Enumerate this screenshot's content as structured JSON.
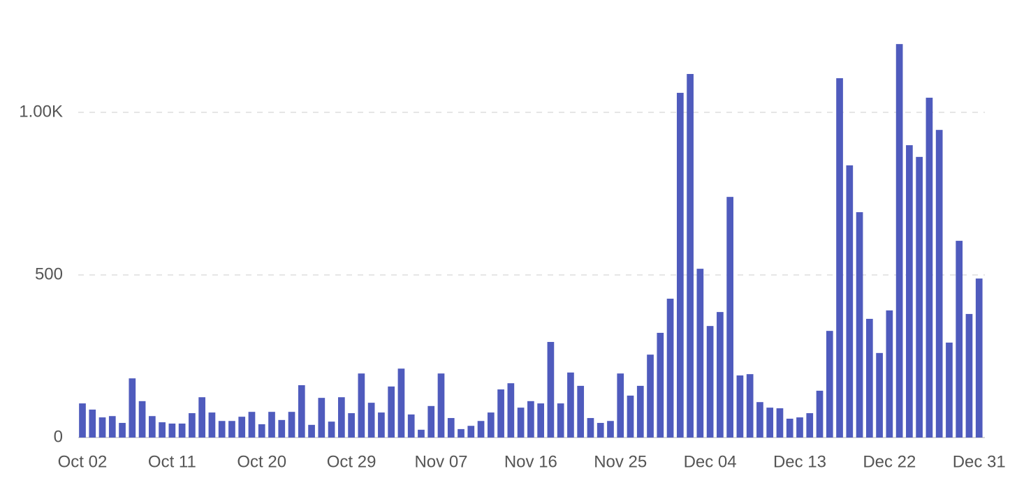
{
  "chart_data": {
    "type": "bar",
    "categories": [
      "Oct 02",
      null,
      null,
      null,
      null,
      null,
      null,
      null,
      null,
      "Oct 11",
      null,
      null,
      null,
      null,
      null,
      null,
      null,
      null,
      "Oct 20",
      null,
      null,
      null,
      null,
      null,
      null,
      null,
      null,
      "Oct 29",
      null,
      null,
      null,
      null,
      null,
      null,
      null,
      null,
      "Nov 07",
      null,
      null,
      null,
      null,
      null,
      null,
      null,
      null,
      "Nov 16",
      null,
      null,
      null,
      null,
      null,
      null,
      null,
      null,
      "Nov 25",
      null,
      null,
      null,
      null,
      null,
      null,
      null,
      null,
      "Dec 04",
      null,
      null,
      null,
      null,
      null,
      null,
      null,
      null,
      "Dec 13",
      null,
      null,
      null,
      null,
      null,
      null,
      null,
      null,
      "Dec 22",
      null,
      null,
      null,
      null,
      null,
      null,
      null,
      null,
      "Dec 31"
    ],
    "values": [
      105,
      86,
      62,
      66,
      45,
      182,
      112,
      66,
      47,
      43,
      43,
      75,
      124,
      77,
      51,
      51,
      64,
      79,
      41,
      79,
      54,
      79,
      161,
      39,
      122,
      49,
      124,
      75,
      197,
      107,
      77,
      157,
      212,
      71,
      24,
      97,
      197,
      60,
      26,
      36,
      51,
      77,
      148,
      167,
      92,
      112,
      105,
      294,
      105,
      200,
      159,
      60,
      45,
      51,
      197,
      129,
      159,
      255,
      322,
      427,
      1060,
      1118,
      519,
      343,
      386,
      740,
      191,
      195,
      109,
      92,
      90,
      58,
      62,
      75,
      144,
      328,
      1105,
      837,
      693,
      365,
      260,
      391,
      1210,
      899,
      863,
      1045,
      946,
      292,
      605,
      380,
      489
    ],
    "color": "#4f5bbd",
    "ylim": [
      0,
      1250
    ],
    "yticks": [
      0,
      500,
      {
        "value": 1000,
        "label": "1.00K"
      }
    ],
    "grid": true
  }
}
